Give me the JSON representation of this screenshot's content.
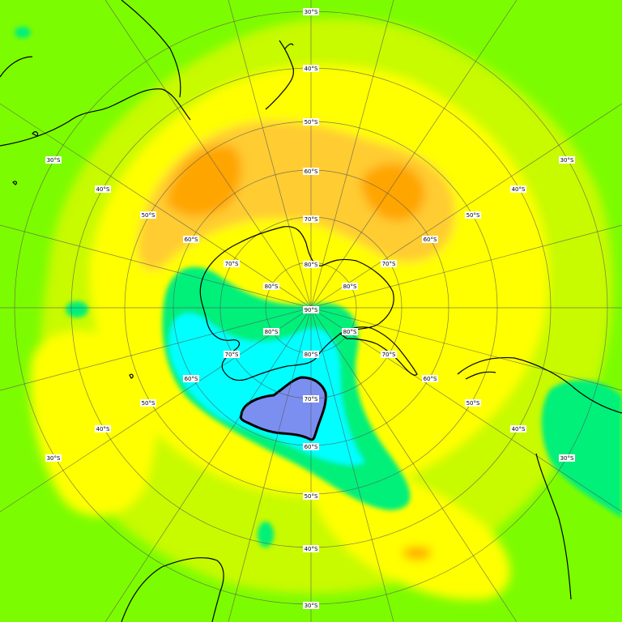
{
  "map": {
    "projection": "south-polar-stereographic",
    "colors": {
      "background_green": "#7cfc00",
      "yellow_green": "#c8fa00",
      "yellow": "#ffff00",
      "light_orange": "#ffcc33",
      "orange": "#ffa500",
      "sea_green": "#00f07a",
      "cyan": "#00ffff",
      "ozone_hole": "#7b8ff0",
      "coastline": "#000000",
      "graticule": "#555555"
    },
    "graticule_labels": {
      "lat_30": "30°S",
      "lat_40": "40°S",
      "lat_50": "50°S",
      "lat_60": "60°S",
      "lat_70": "70°S",
      "lat_80": "80°S",
      "pole": "90°S"
    }
  }
}
